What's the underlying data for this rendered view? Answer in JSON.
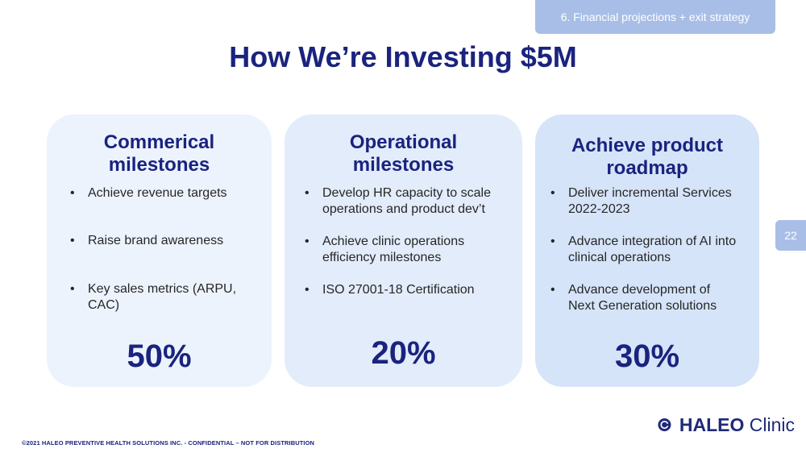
{
  "section_tab": "6. Financial projections + exit strategy",
  "page_number": "22",
  "title": "How We’re Investing $5M",
  "cards": [
    {
      "heading_lines": [
        "Commerical",
        "milestones"
      ],
      "bullets": [
        [
          "Achieve revenue targets"
        ],
        [
          "Raise brand awareness"
        ],
        [
          "Key sales metrics (ARPU, CAC)"
        ]
      ],
      "percent": "50%"
    },
    {
      "heading_lines": [
        "Operational",
        "milestones"
      ],
      "bullets": [
        [
          "Develop HR capacity to scale",
          "operations and product dev’t"
        ],
        [
          "Achieve clinic operations",
          "efficiency milestones"
        ],
        [
          "ISO 27001-18 Certification"
        ]
      ],
      "percent": "20%"
    },
    {
      "heading_lines": [
        "Achieve product",
        "roadmap"
      ],
      "bullets": [
        [
          "Deliver incremental Services",
          "2022-2023"
        ],
        [
          "Advance integration of AI into",
          "clinical operations"
        ],
        [
          "Advance development of",
          "Next Generation solutions"
        ]
      ],
      "percent": "30%"
    }
  ],
  "footer": "©2021 HALEO PREVENTIVE HEALTH SOLUTIONS INC. -  CONFIDENTIAL – NOT FOR DISTRIBUTION",
  "logo": {
    "bold": "HALEO",
    "light": "Clinic"
  },
  "colors": {
    "title": "#1a237e",
    "tab": "#a9bee6",
    "card_1": "#edf3fd",
    "card_2": "#e3ecfb",
    "card_3": "#d6e4f9",
    "logo_mark": "#1e2a78"
  }
}
